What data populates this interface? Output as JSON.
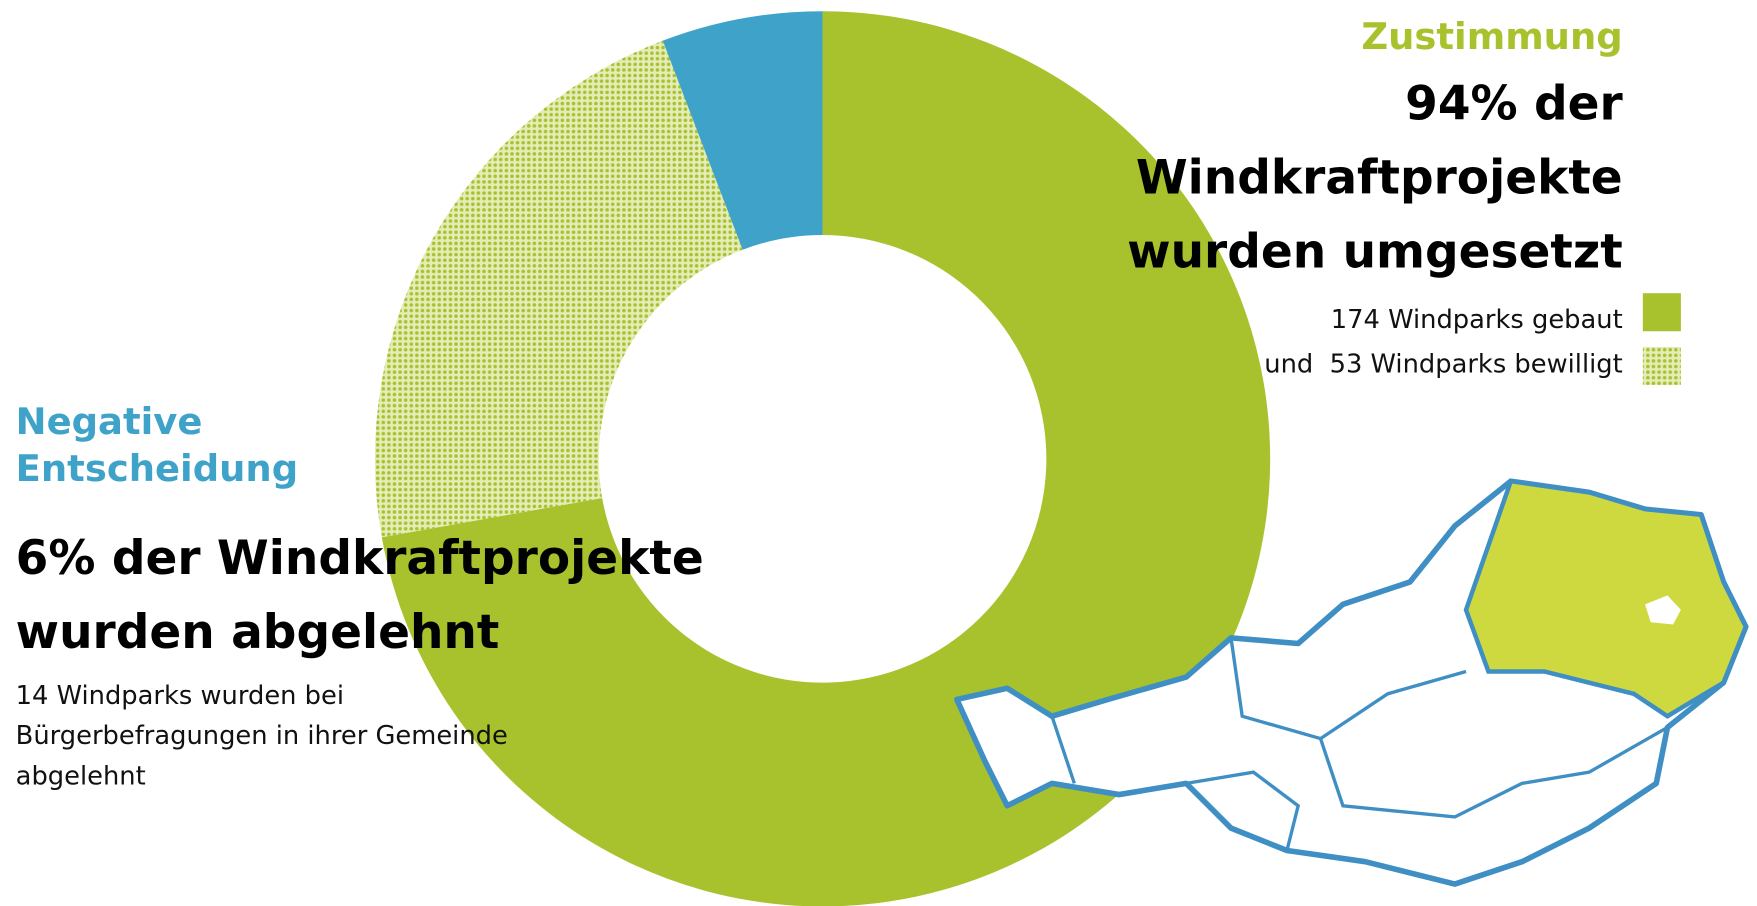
{
  "chart_data": {
    "type": "donut",
    "categories": [
      "174 Windparks gebaut",
      "und  53 Windparks bewilligt",
      "14 Windparks wurden bei Bürgerbefragungen in ihrer Gemeinde abgelehnt"
    ],
    "values": [
      174,
      53,
      14
    ],
    "colors": [
      "#a8c22d",
      "#a8c22d",
      "#3fa3c9"
    ],
    "patterned": [
      false,
      true,
      false
    ],
    "annotations": {
      "approval_title": "Zustimmung",
      "approval_text": "94% der Windkraftprojekte wurden umgesetzt",
      "negative_title": "Negative Entscheidung",
      "negative_text": "6% der Windkraftprojekte wurden abgelehnt"
    }
  }
}
